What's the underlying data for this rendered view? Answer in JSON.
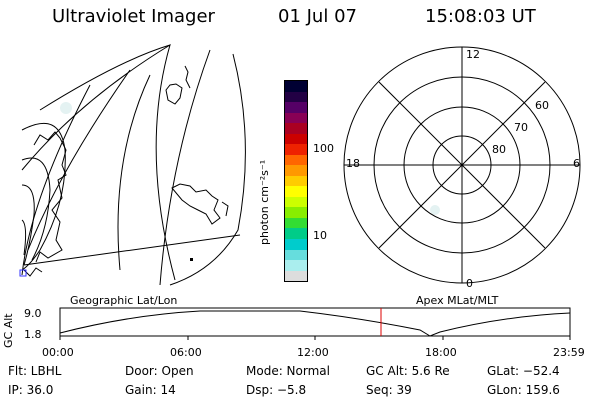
{
  "header": {
    "instrument": "Ultraviolet Imager",
    "date": "01 Jul 07",
    "time": "15:08:03 UT"
  },
  "colorbar": {
    "unit_label": "photon cm⁻²s⁻¹",
    "ticks": [
      "100",
      "10"
    ],
    "colors": [
      "#000033",
      "#220044",
      "#550066",
      "#880055",
      "#aa0022",
      "#cc0000",
      "#ee2200",
      "#ff6600",
      "#ff9900",
      "#ffcc00",
      "#ffff00",
      "#ccff00",
      "#88ee00",
      "#33dd33",
      "#00cc88",
      "#00cccc",
      "#66dddd",
      "#aaeeee",
      "#dddddd"
    ]
  },
  "polar_plot": {
    "mlt_labels": [
      "12",
      "18",
      "6",
      "0"
    ],
    "lat_labels": [
      "60",
      "70",
      "80"
    ]
  },
  "timeline": {
    "axis_label": "GC Alt",
    "left_caption": "Geographic Lat/Lon",
    "right_caption": "Apex MLat/MLT",
    "y_ticks": [
      "9.0",
      "1.8"
    ],
    "x_ticks": [
      "00:00",
      "06:00",
      "12:00",
      "18:00",
      "23:59"
    ],
    "marker_color": "#dd0000"
  },
  "footer": {
    "filter": "Flt: LBHL",
    "door": "Door: Open",
    "mode": "Mode: Normal",
    "gc_alt": "GC Alt: 5.6 Re",
    "glat": "GLat: −52.4",
    "ip": "IP: 36.0",
    "gain": "Gain: 14",
    "dsp": "Dsp:   −5.8",
    "seq": "Seq: 39",
    "glon": "GLon: 159.6"
  }
}
